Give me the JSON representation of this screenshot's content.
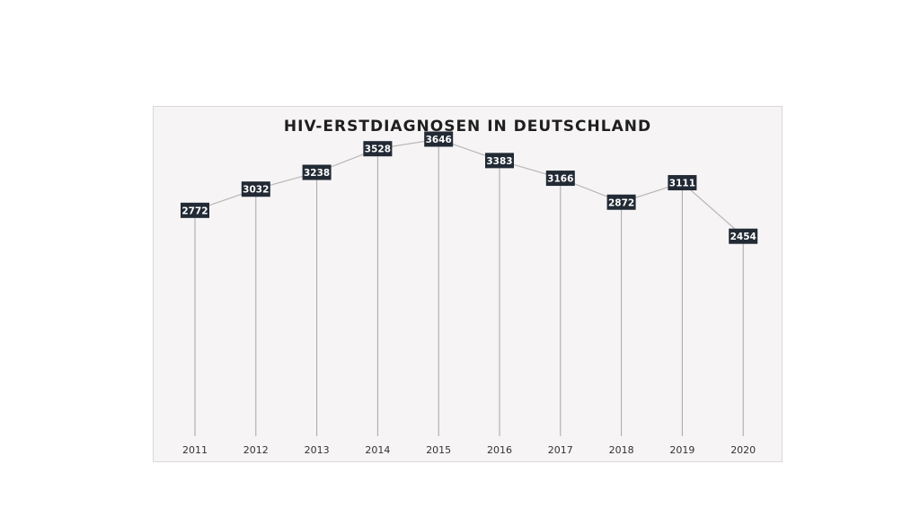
{
  "chart_data": {
    "type": "line",
    "title": "HIV-ERSTDIAGNOSEN IN DEUTSCHLAND",
    "xlabel": "",
    "ylabel": "",
    "categories": [
      "2011",
      "2012",
      "2013",
      "2014",
      "2015",
      "2016",
      "2017",
      "2018",
      "2019",
      "2020"
    ],
    "values": [
      2772,
      3032,
      3238,
      3528,
      3646,
      3383,
      3166,
      2872,
      3111,
      2454
    ],
    "ylim": [
      0,
      3800
    ],
    "grid": false,
    "legend": "none",
    "drop_lines": true,
    "data_labels": true,
    "colors": {
      "line": "#b7b7b7",
      "drop_line": "#a6a6a6",
      "label_bg": "#222a35",
      "label_text": "#ffffff",
      "panel_bg": "#f6f4f5"
    }
  }
}
